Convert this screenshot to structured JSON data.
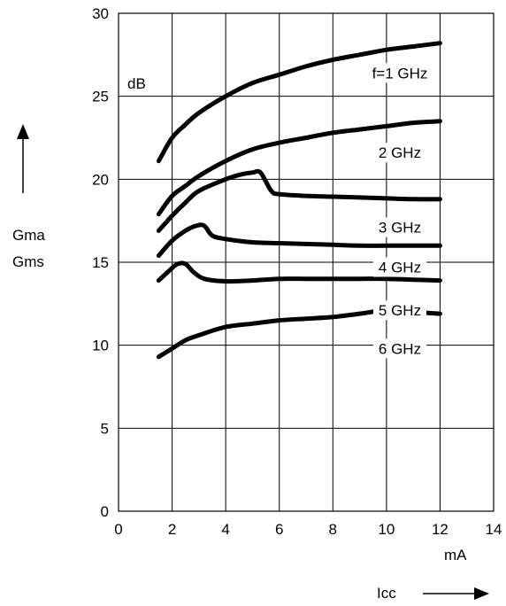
{
  "chart_data": {
    "type": "line",
    "title": "",
    "xlabel": "Icc",
    "x_unit": "mA",
    "ylabel": [
      "Gma",
      "Gms"
    ],
    "y_unit": "dB",
    "xlim": [
      0,
      14
    ],
    "ylim": [
      0,
      30
    ],
    "x_ticks": [
      "0",
      "2",
      "4",
      "6",
      "8",
      "10",
      "12",
      "14"
    ],
    "y_ticks": [
      "0",
      "5",
      "10",
      "15",
      "20",
      "25",
      "30"
    ],
    "grid": true,
    "series": [
      {
        "name": "f=1 GHz",
        "x": [
          1.5,
          2,
          2.5,
          3,
          4,
          5,
          6,
          7,
          8,
          9,
          10,
          11,
          12
        ],
        "y": [
          21.1,
          22.5,
          23.3,
          24.0,
          25.0,
          25.8,
          26.3,
          26.8,
          27.2,
          27.5,
          27.8,
          28.0,
          28.2
        ]
      },
      {
        "name": "2 GHz",
        "x": [
          1.5,
          2,
          2.5,
          3,
          4,
          5,
          6,
          7,
          8,
          9,
          10,
          11,
          12
        ],
        "y": [
          17.9,
          19.0,
          19.6,
          20.2,
          21.1,
          21.8,
          22.2,
          22.5,
          22.8,
          23.0,
          23.2,
          23.4,
          23.5
        ]
      },
      {
        "name": "3 GHz",
        "x": [
          1.5,
          2,
          2.5,
          3,
          4,
          4.6,
          5,
          5.3,
          5.7,
          6,
          7,
          8,
          9,
          10,
          11,
          12
        ],
        "y": [
          16.9,
          17.8,
          18.6,
          19.3,
          20.0,
          20.3,
          20.4,
          20.4,
          19.3,
          19.1,
          19.0,
          18.95,
          18.9,
          18.85,
          18.8,
          18.8
        ]
      },
      {
        "name": "4 GHz",
        "x": [
          1.5,
          2,
          2.5,
          2.9,
          3.2,
          3.5,
          4,
          5,
          6,
          7,
          8,
          9,
          10,
          11,
          12
        ],
        "y": [
          15.4,
          16.3,
          16.9,
          17.2,
          17.2,
          16.6,
          16.4,
          16.2,
          16.15,
          16.1,
          16.05,
          16.0,
          16.0,
          16.0,
          16.0
        ]
      },
      {
        "name": "5 GHz",
        "x": [
          1.5,
          1.9,
          2.2,
          2.5,
          2.8,
          3.2,
          4,
          5,
          6,
          7,
          8,
          9,
          10,
          11,
          12
        ],
        "y": [
          13.9,
          14.5,
          14.9,
          14.9,
          14.4,
          14.0,
          13.85,
          13.9,
          14.0,
          14.0,
          14.0,
          14.0,
          14.0,
          13.95,
          13.9
        ]
      },
      {
        "name": "6 GHz",
        "x": [
          1.5,
          2,
          2.5,
          3,
          4,
          5,
          6,
          7,
          8,
          9,
          10,
          11,
          12
        ],
        "y": [
          9.3,
          9.8,
          10.3,
          10.6,
          11.1,
          11.3,
          11.5,
          11.6,
          11.7,
          11.9,
          12.1,
          12.0,
          11.9
        ]
      }
    ]
  }
}
